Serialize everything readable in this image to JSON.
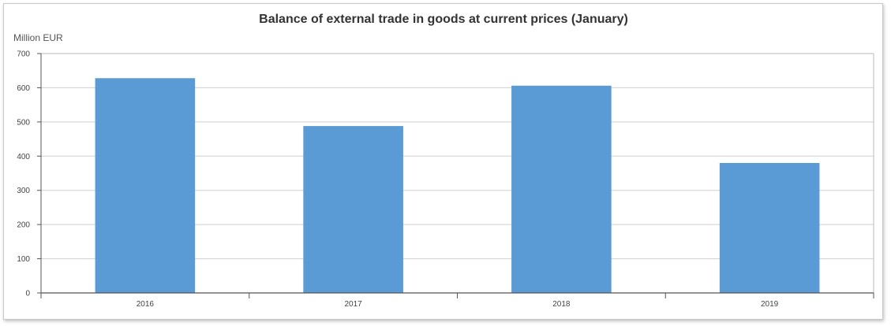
{
  "chart_data": {
    "type": "bar",
    "title": "Balance of external trade in goods at current prices (January)",
    "ylabel": "Million EUR",
    "xlabel": "",
    "categories": [
      "2016",
      "2017",
      "2018",
      "2019"
    ],
    "values": [
      628,
      488,
      606,
      380
    ],
    "ylim": [
      0,
      700
    ],
    "yticks": [
      0,
      100,
      200,
      300,
      400,
      500,
      600,
      700
    ],
    "grid": true,
    "bar_color": "#5b9bd5",
    "grid_color": "#cfcfcf",
    "axis_color": "#555555"
  }
}
